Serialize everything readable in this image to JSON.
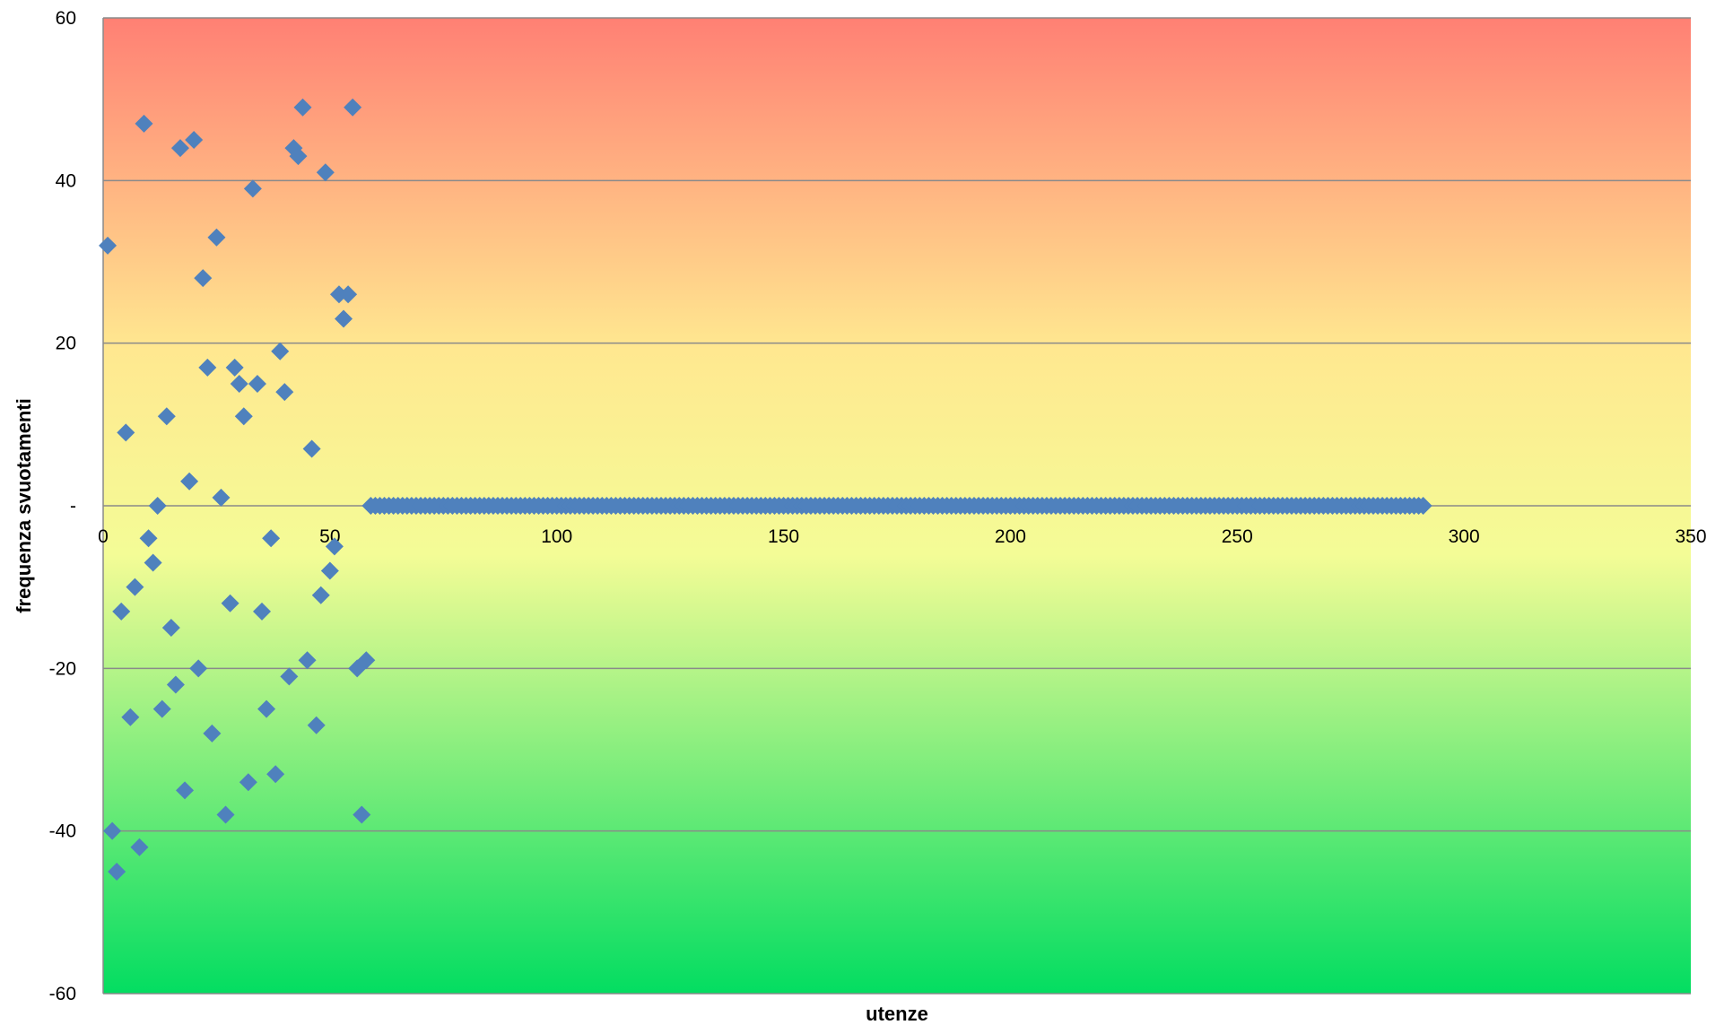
{
  "chart_data": {
    "type": "scatter",
    "title": "",
    "xlabel": "utenze",
    "ylabel": "frequenza svuotamenti",
    "xlim": [
      0,
      350
    ],
    "ylim": [
      -60,
      60
    ],
    "x_ticks": [
      0,
      50,
      100,
      150,
      200,
      250,
      300,
      350
    ],
    "y_ticks": [
      60,
      40,
      20,
      0,
      -20,
      -40,
      -60
    ],
    "y_tick_labels": [
      "60",
      "40",
      "20",
      "-",
      "-20",
      "-40",
      "-60"
    ],
    "grid": "horizontal",
    "legend": "none",
    "background_gradient": [
      "#ff8074",
      "#ffe890",
      "#f4fc96",
      "#03dd61"
    ],
    "marker": {
      "shape": "diamond",
      "color": "#4f81bd"
    },
    "series": [
      {
        "x": [
          1,
          2,
          3,
          4,
          5,
          6,
          7,
          8,
          9,
          10,
          11,
          12,
          13,
          14,
          15,
          16,
          17,
          18,
          19,
          20,
          21,
          22,
          23,
          24,
          25,
          26,
          27,
          28,
          29,
          30,
          31,
          32,
          33,
          34,
          35,
          36,
          37,
          38,
          39,
          40,
          41,
          42,
          43,
          44,
          45,
          46,
          47,
          48,
          49,
          50,
          51,
          52,
          53,
          54,
          55,
          56,
          57,
          58
        ],
        "y": [
          32,
          -40,
          -45,
          -13,
          9,
          -26,
          -10,
          -42,
          47,
          -4,
          -7,
          0,
          -25,
          11,
          -15,
          -22,
          44,
          -35,
          3,
          45,
          -20,
          28,
          17,
          -28,
          33,
          1,
          -38,
          -12,
          17,
          15,
          11,
          -34,
          39,
          15,
          -13,
          -25,
          -4,
          -33,
          19,
          14,
          -21,
          44,
          43,
          49,
          -19,
          7,
          -27,
          -11,
          41,
          -8,
          -5,
          26,
          23,
          26,
          49,
          -20,
          -38,
          -19
        ]
      },
      {
        "x_range": [
          59,
          291
        ],
        "y_constant": 0
      }
    ]
  }
}
